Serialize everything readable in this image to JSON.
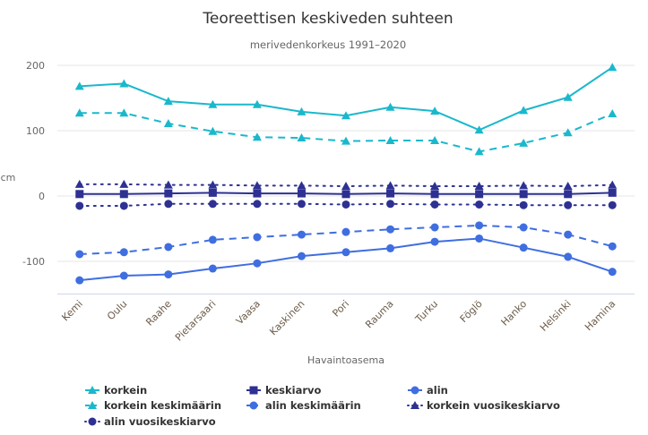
{
  "chart_data": {
    "type": "line",
    "title": "Teoreettisen keskiveden suhteen",
    "subtitle": "merivedenkorkeus 1991–2020",
    "xlabel": "Havaintoasema",
    "ylabel": "cm",
    "ylim": [
      -150,
      210
    ],
    "yticks": [
      200,
      100,
      0,
      -100
    ],
    "grid": true,
    "legend_position": "bottom",
    "categories": [
      "Kemi",
      "Oulu",
      "Raahe",
      "Pietarsaari",
      "Vaasa",
      "Kaskinen",
      "Pori",
      "Rauma",
      "Turku",
      "Föglö",
      "Hanko",
      "Helsinki",
      "Hamina"
    ],
    "series": [
      {
        "name": "korkein",
        "color": "#1ab8cc",
        "dash": "solid",
        "marker": "triangle",
        "values": [
          168,
          172,
          145,
          140,
          140,
          129,
          123,
          136,
          130,
          101,
          131,
          151,
          197
        ]
      },
      {
        "name": "keskiarvo",
        "color": "#2e3192",
        "dash": "solid",
        "marker": "square",
        "values": [
          3,
          3,
          4,
          5,
          4,
          4,
          3,
          4,
          3,
          3,
          3,
          3,
          5
        ]
      },
      {
        "name": "alin",
        "color": "#3f6ee0",
        "dash": "solid",
        "marker": "circle",
        "values": [
          -129,
          -122,
          -120,
          -111,
          -103,
          -92,
          -86,
          -80,
          -70,
          -65,
          -79,
          -93,
          -116
        ]
      },
      {
        "name": "korkein keskimäärin",
        "color": "#1ab8cc",
        "dash": "dash",
        "marker": "triangle",
        "values": [
          127,
          127,
          111,
          99,
          90,
          89,
          84,
          85,
          85,
          68,
          81,
          97,
          126
        ]
      },
      {
        "name": "alin keskimäärin",
        "color": "#3f6ee0",
        "dash": "dash",
        "marker": "circle",
        "values": [
          -89,
          -86,
          -78,
          -67,
          -63,
          -59,
          -55,
          -51,
          -48,
          -45,
          -48,
          -59,
          -77
        ]
      },
      {
        "name": "korkein vuosikeskiarvo",
        "color": "#2e3192",
        "dash": "dot",
        "marker": "triangle",
        "values": [
          18,
          18,
          17,
          17,
          16,
          16,
          15,
          16,
          15,
          15,
          16,
          15,
          17
        ]
      },
      {
        "name": "alin vuosikeskiarvo",
        "color": "#2e3192",
        "dash": "dot",
        "marker": "circle",
        "values": [
          -15,
          -15,
          -12,
          -12,
          -12,
          -12,
          -13,
          -12,
          -13,
          -13,
          -14,
          -14,
          -14
        ]
      }
    ]
  }
}
